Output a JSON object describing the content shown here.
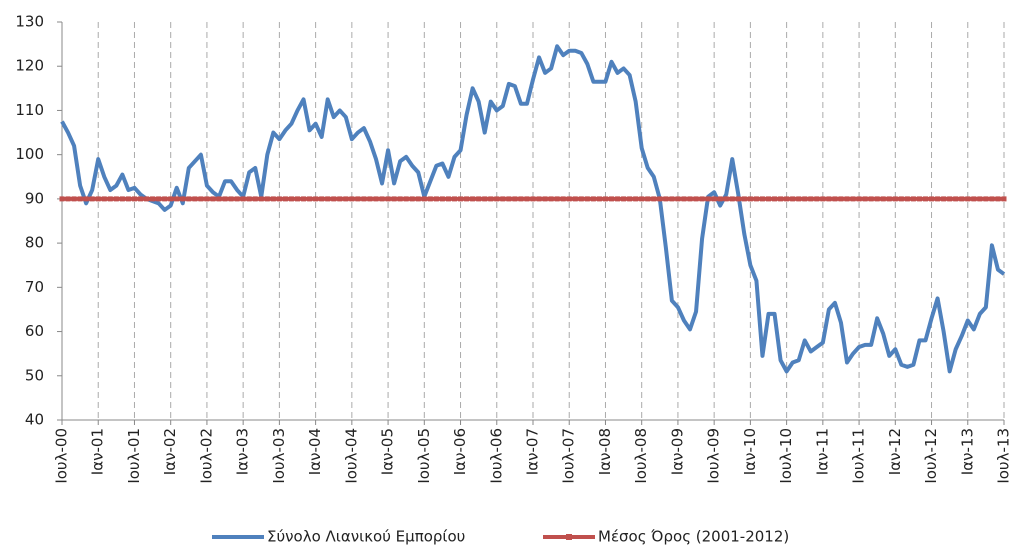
{
  "chart_data": {
    "type": "line",
    "categories": [
      "Ιουλ-00",
      null,
      null,
      null,
      null,
      null,
      "Ιαν-01",
      null,
      null,
      null,
      null,
      null,
      "Ιουλ-01",
      null,
      null,
      null,
      null,
      null,
      "Ιαν-02",
      null,
      null,
      null,
      null,
      null,
      "Ιουλ-02",
      null,
      null,
      null,
      null,
      null,
      "Ιαν-03",
      null,
      null,
      null,
      null,
      null,
      "Ιουλ-03",
      null,
      null,
      null,
      null,
      null,
      "Ιαν-04",
      null,
      null,
      null,
      null,
      null,
      "Ιουλ-04",
      null,
      null,
      null,
      null,
      null,
      "Ιαν-05",
      null,
      null,
      null,
      null,
      null,
      "Ιουλ-05",
      null,
      null,
      null,
      null,
      null,
      "Ιαν-06",
      null,
      null,
      null,
      null,
      null,
      "Ιουλ-06",
      null,
      null,
      null,
      null,
      null,
      "Ιαν-07",
      null,
      null,
      null,
      null,
      null,
      "Ιουλ-07",
      null,
      null,
      null,
      null,
      null,
      "Ιαν-08",
      null,
      null,
      null,
      null,
      null,
      "Ιουλ-08",
      null,
      null,
      null,
      null,
      null,
      "Ιαν-09",
      null,
      null,
      null,
      null,
      null,
      "Ιουλ-09",
      null,
      null,
      null,
      null,
      null,
      "Ιαν-10",
      null,
      null,
      null,
      null,
      null,
      "Ιουλ-10",
      null,
      null,
      null,
      null,
      null,
      "Ιαν-11",
      null,
      null,
      null,
      null,
      null,
      "Ιουλ-11",
      null,
      null,
      null,
      null,
      null,
      "Ιαν-12",
      null,
      null,
      null,
      null,
      null,
      "Ιουλ-12",
      null,
      null,
      null,
      null,
      null,
      "Ιαν-13",
      null,
      null,
      null,
      null,
      null,
      "Ιουλ-13"
    ],
    "series": [
      {
        "name": "Σύνολο Λιανικού Εμπορίου",
        "color": "#4f81bd",
        "markers": false,
        "values": [
          107.5,
          105,
          102,
          93,
          89,
          92,
          99,
          95,
          92,
          93,
          95.5,
          92,
          92.5,
          91,
          90,
          89.5,
          89,
          87.5,
          88.5,
          92.5,
          89,
          97,
          98.5,
          100,
          93,
          91.5,
          90.5,
          94,
          94,
          92,
          90.5,
          96,
          97,
          90.5,
          100,
          105,
          103.5,
          105.5,
          107,
          110,
          112.5,
          105.5,
          107,
          104,
          112.5,
          108.5,
          110,
          108.5,
          103.5,
          105,
          106,
          103,
          99,
          93.5,
          101,
          93.5,
          98.5,
          99.5,
          97.5,
          96,
          90.5,
          94,
          97.5,
          98,
          95,
          99.5,
          101,
          109,
          115,
          112,
          105,
          112,
          110,
          111,
          116,
          115.5,
          111.5,
          111.5,
          117,
          122,
          118.5,
          119.5,
          124.5,
          122.5,
          123.5,
          123.5,
          123,
          120.5,
          116.5,
          116.5,
          116.5,
          121,
          118.5,
          119.5,
          118,
          112,
          101.5,
          97,
          95,
          90,
          79,
          67,
          65.5,
          62.5,
          60.5,
          64.5,
          81,
          90.5,
          91.5,
          88.5,
          91,
          99,
          91,
          82,
          75,
          71.5,
          54.5,
          64,
          64,
          53.5,
          51,
          53,
          53.5,
          58,
          55.5,
          56.5,
          57.5,
          65,
          66.5,
          62,
          53,
          55,
          56.5,
          57,
          57,
          63,
          59.5,
          54.5,
          56,
          52.5,
          52,
          52.5,
          58,
          58,
          63,
          67.5,
          60,
          51,
          56,
          59,
          62.5,
          60.5,
          64,
          65.5,
          79.5,
          74,
          73
        ]
      },
      {
        "name": "Μέσος Όρος (2001-2012)",
        "color": "#c0504d",
        "markers": true,
        "values": [
          90,
          90,
          90,
          90,
          90,
          90,
          90,
          90,
          90,
          90,
          90,
          90,
          90,
          90,
          90,
          90,
          90,
          90,
          90,
          90,
          90,
          90,
          90,
          90,
          90,
          90,
          90,
          90,
          90,
          90,
          90,
          90,
          90,
          90,
          90,
          90,
          90,
          90,
          90,
          90,
          90,
          90,
          90,
          90,
          90,
          90,
          90,
          90,
          90,
          90,
          90,
          90,
          90,
          90,
          90,
          90,
          90,
          90,
          90,
          90,
          90,
          90,
          90,
          90,
          90,
          90,
          90,
          90,
          90,
          90,
          90,
          90,
          90,
          90,
          90,
          90,
          90,
          90,
          90,
          90,
          90,
          90,
          90,
          90,
          90,
          90,
          90,
          90,
          90,
          90,
          90,
          90,
          90,
          90,
          90,
          90,
          90,
          90,
          90,
          90,
          90,
          90,
          90,
          90,
          90,
          90,
          90,
          90,
          90,
          90,
          90,
          90,
          90,
          90,
          90,
          90,
          90,
          90,
          90,
          90,
          90,
          90,
          90,
          90,
          90,
          90,
          90,
          90,
          90,
          90,
          90,
          90,
          90,
          90,
          90,
          90,
          90,
          90,
          90,
          90,
          90,
          90,
          90,
          90,
          90,
          90,
          90,
          90,
          90,
          90,
          90,
          90,
          90,
          90,
          90,
          90,
          90
        ]
      }
    ],
    "ylim": [
      40,
      130
    ],
    "yticks": [
      40,
      50,
      60,
      70,
      80,
      90,
      100,
      110,
      120,
      130
    ],
    "xgrid": true,
    "legend": "bottom"
  }
}
